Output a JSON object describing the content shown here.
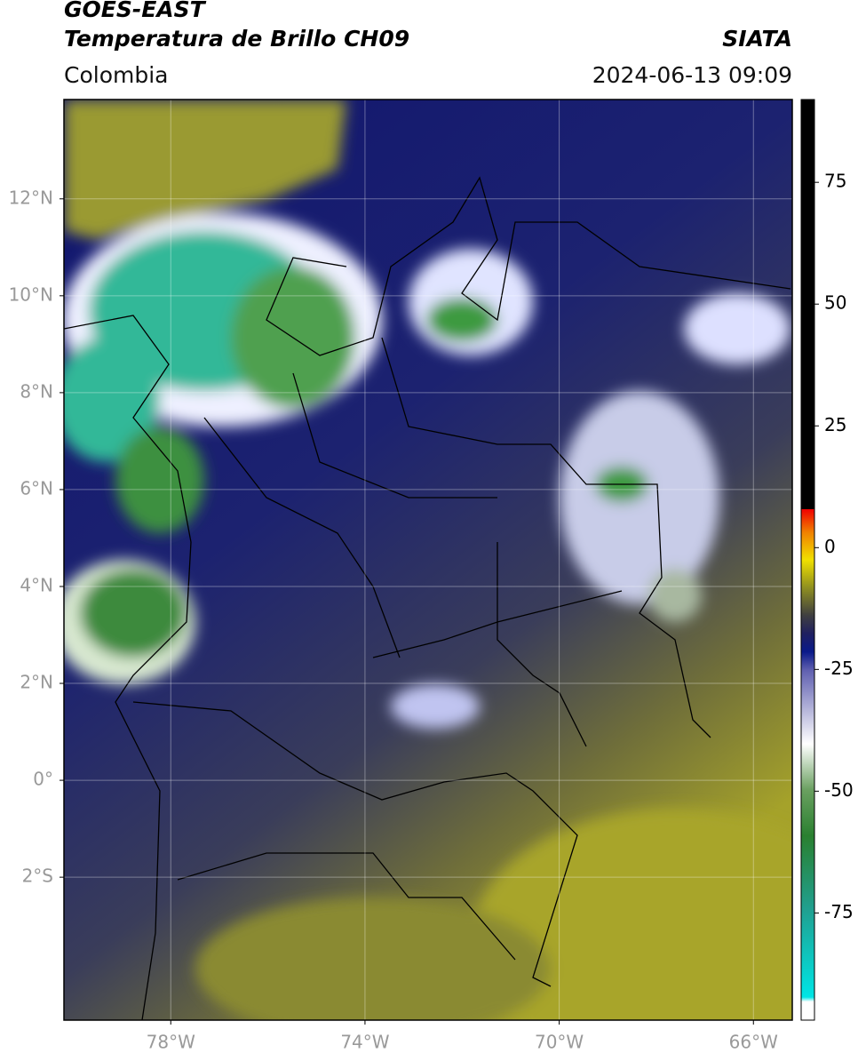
{
  "header": {
    "title": "GOES-EAST",
    "subtitle": "Temperatura de Brillo CH09",
    "region": "Colombia",
    "source": "SIATA",
    "datetime": "2024-06-13 09:09"
  },
  "map": {
    "lonlim": [
      -80.2,
      -65.2
    ],
    "latlim": [
      -4.95,
      14.05
    ],
    "grid": true,
    "lonticks": [
      {
        "value": -78,
        "label": "78°W"
      },
      {
        "value": -74,
        "label": "74°W"
      },
      {
        "value": -70,
        "label": "70°W"
      },
      {
        "value": -66,
        "label": "66°W"
      }
    ],
    "latticks": [
      {
        "value": 12,
        "label": "12°N"
      },
      {
        "value": 10,
        "label": "10°N"
      },
      {
        "value": 8,
        "label": "8°N"
      },
      {
        "value": 6,
        "label": "6°N"
      },
      {
        "value": 4,
        "label": "4°N"
      },
      {
        "value": 2,
        "label": "2°N"
      },
      {
        "value": 0,
        "label": "0°"
      },
      {
        "value": -2,
        "label": "2°S"
      }
    ]
  },
  "colorbar": {
    "lim": [
      -97,
      92
    ],
    "ticks": [
      75,
      50,
      25,
      0,
      -25,
      -50,
      -75
    ]
  }
}
